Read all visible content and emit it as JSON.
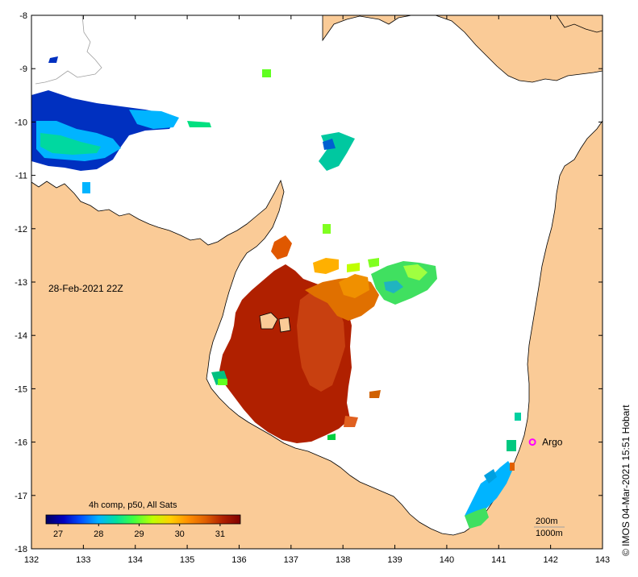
{
  "map": {
    "timestamp": "28-Feb-2021 22Z",
    "credit": "© IMOS 04-Mar-2021 15:51 Hobart",
    "argo_label": "Argo",
    "isobaths": [
      "200m",
      "1000m"
    ],
    "colors": {
      "land": "#facb97",
      "sea": "#ffffff",
      "coast_line": "#000000",
      "argo": "#ff00ff",
      "isobath": "#a0a0a0"
    }
  },
  "axes": {
    "longitude_ticks": [
      "132",
      "133",
      "134",
      "135",
      "136",
      "137",
      "138",
      "139",
      "140",
      "141",
      "142",
      "143"
    ],
    "latitude_ticks": [
      "-8",
      "-9",
      "-10",
      "-11",
      "-12",
      "-13",
      "-14",
      "-15",
      "-16",
      "-17",
      "-18"
    ],
    "lon_range": [
      132,
      143
    ],
    "lat_range": [
      -18,
      -8
    ]
  },
  "colorbar": {
    "title": "4h comp, p50, All Sats",
    "tick_labels": [
      "27",
      "28",
      "29",
      "30",
      "31"
    ],
    "range": [
      26.7,
      31.5
    ],
    "colors": [
      "#000060",
      "#0000c0",
      "#0050ff",
      "#00b4ff",
      "#00e0a0",
      "#40ff40",
      "#c0ff00",
      "#ffd000",
      "#ff9000",
      "#e06000",
      "#b02000",
      "#800000"
    ]
  },
  "argo_float": {
    "lon": 141.65,
    "lat": -16.0
  }
}
